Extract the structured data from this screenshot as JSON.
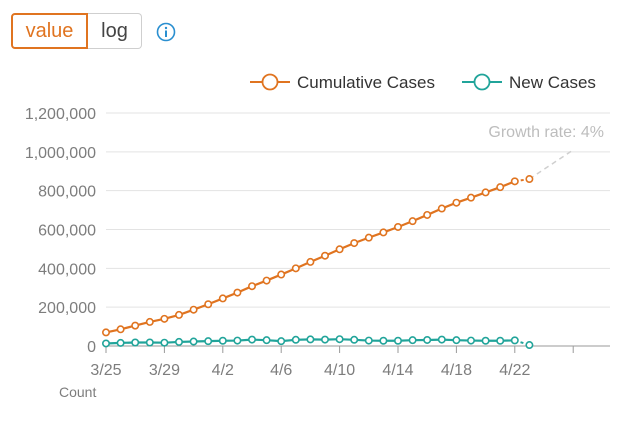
{
  "toggle": {
    "value_label": "value",
    "log_label": "log"
  },
  "info_icon": "info-icon",
  "chart_data": {
    "type": "line",
    "x": [
      "3/25",
      "3/26",
      "3/27",
      "3/28",
      "3/29",
      "3/30",
      "3/31",
      "4/1",
      "4/2",
      "4/3",
      "4/4",
      "4/5",
      "4/6",
      "4/7",
      "4/8",
      "4/9",
      "4/10",
      "4/11",
      "4/12",
      "4/13",
      "4/14",
      "4/15",
      "4/16",
      "4/17",
      "4/18",
      "4/19",
      "4/20",
      "4/21",
      "4/22",
      "4/23"
    ],
    "x_ticks": [
      "3/25",
      "3/29",
      "4/2",
      "4/6",
      "4/10",
      "4/14",
      "4/18",
      "4/22"
    ],
    "series": [
      {
        "name": "Cumulative Cases",
        "color": "#e07420",
        "values": [
          70000,
          86000,
          105000,
          124000,
          140000,
          160000,
          187000,
          215000,
          245000,
          275000,
          308000,
          337000,
          368000,
          400000,
          433000,
          465000,
          498000,
          530000,
          558000,
          585000,
          613000,
          643000,
          675000,
          708000,
          738000,
          764000,
          791000,
          818000,
          848000,
          860000
        ]
      },
      {
        "name": "New Cases",
        "color": "#21a49a",
        "values": [
          13000,
          16000,
          18000,
          18000,
          17000,
          21000,
          23000,
          25000,
          27000,
          28000,
          33000,
          30000,
          25000,
          32000,
          34000,
          33000,
          35000,
          32000,
          28000,
          27000,
          27000,
          30000,
          31000,
          33000,
          30000,
          28000,
          27000,
          27000,
          29000,
          5000
        ]
      }
    ],
    "y_ticks": [
      "0",
      "200,000",
      "400,000",
      "600,000",
      "800,000",
      "1,000,000",
      "1,200,000"
    ],
    "ylim": [
      0,
      1200000
    ],
    "projection": {
      "label": "Growth rate: 4%",
      "to_value": 1010000
    },
    "count_label": "Count",
    "legend_position": "top-right",
    "grid": true
  }
}
